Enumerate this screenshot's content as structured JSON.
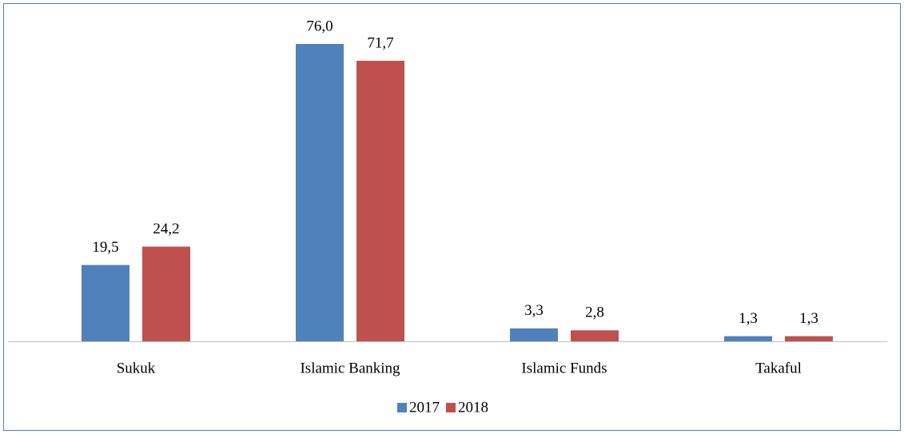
{
  "chart_data": {
    "type": "bar",
    "categories": [
      "Sukuk",
      "Islamic Banking",
      "Islamic Funds",
      "Takaful"
    ],
    "series": [
      {
        "name": "2017",
        "color": "#4f81bd",
        "values": [
          19.5,
          76.0,
          3.3,
          1.3
        ],
        "value_labels": [
          "19,5",
          "76,0",
          "3,3",
          "1,3"
        ]
      },
      {
        "name": "2018",
        "color": "#c0504d",
        "values": [
          24.2,
          71.7,
          2.8,
          1.3
        ],
        "value_labels": [
          "24,2",
          "71,7",
          "2,8",
          "1,3"
        ]
      }
    ],
    "legend": "bottom"
  }
}
